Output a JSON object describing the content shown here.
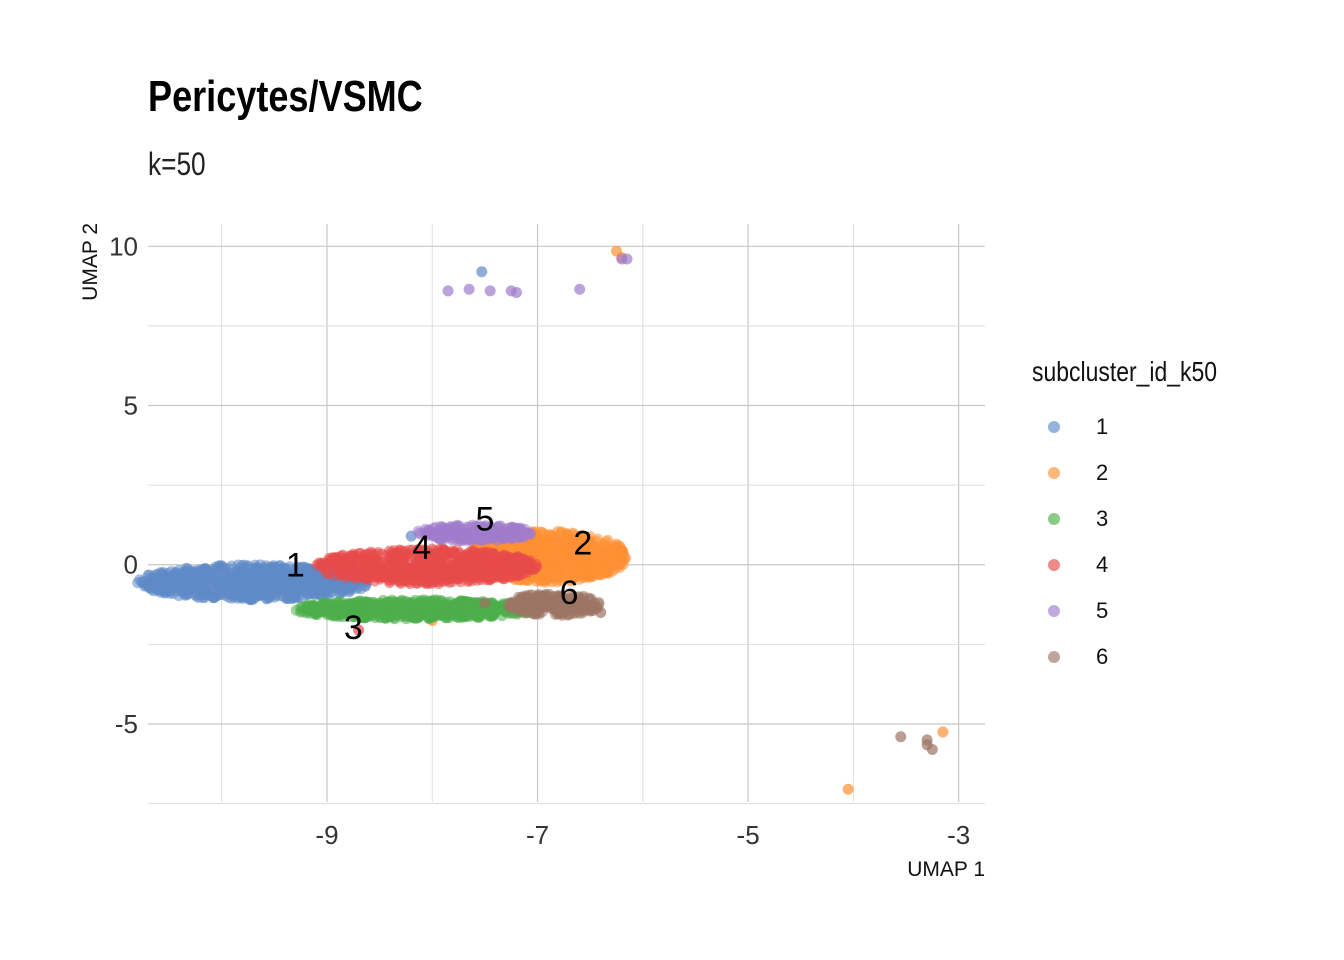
{
  "chart_data": {
    "type": "scatter",
    "title": "Pericytes/VSMC",
    "subtitle": "k=50",
    "xlabel": "UMAP 1",
    "ylabel": "UMAP 2",
    "xlim": [
      -10.7,
      -2.75
    ],
    "ylim": [
      -7.45,
      10.7
    ],
    "x_ticks": [
      -9,
      -7,
      -5,
      -3
    ],
    "y_ticks": [
      -5,
      0,
      5,
      10
    ],
    "x_tick_labels": [
      "-9",
      "-7",
      "-5",
      "-3"
    ],
    "y_tick_labels": [
      "-5",
      "0",
      "5",
      "10"
    ],
    "grid": true,
    "legend": {
      "title": "subcluster_id_k50",
      "position": "right"
    },
    "series": [
      {
        "name": "1",
        "color": "#5e8ac7",
        "label": "1",
        "label_pos": [
          -9.3,
          0
        ],
        "cloud": {
          "cx": -9.7,
          "cy": -0.55,
          "rx": 1.1,
          "ry": 0.55,
          "n": 700
        },
        "points": [
          [
            -7.53,
            9.2
          ],
          [
            -8.2,
            0.9
          ],
          [
            -7.7,
            0.95
          ],
          [
            -10.55,
            -0.8
          ]
        ]
      },
      {
        "name": "2",
        "color": "#ff9033",
        "label": "2",
        "label_pos": [
          -6.57,
          0.7
        ],
        "cloud": {
          "cx": -6.9,
          "cy": 0.25,
          "rx": 0.75,
          "ry": 0.8,
          "n": 700
        },
        "points": [
          [
            -6.25,
            9.85
          ],
          [
            -6.2,
            9.65
          ],
          [
            -3.15,
            -5.25
          ],
          [
            -4.05,
            -7.05
          ],
          [
            -8.0,
            -1.75
          ]
        ]
      },
      {
        "name": "3",
        "color": "#4daf4a",
        "label": "3",
        "label_pos": [
          -8.75,
          -1.95
        ],
        "cloud": {
          "cx": -8.15,
          "cy": -1.4,
          "rx": 1.15,
          "ry": 0.3,
          "n": 650
        },
        "points": []
      },
      {
        "name": "4",
        "color": "#e84a4a",
        "label": "4",
        "label_pos": [
          -8.1,
          0.55
        ],
        "cloud": {
          "cx": -8.05,
          "cy": -0.05,
          "rx": 1.05,
          "ry": 0.55,
          "n": 650
        },
        "points": [
          [
            -8.7,
            -2.05
          ]
        ]
      },
      {
        "name": "5",
        "color": "#a07ccc",
        "label": "5",
        "label_pos": [
          -7.5,
          1.45
        ],
        "cloud": {
          "cx": -7.6,
          "cy": 1.0,
          "rx": 0.55,
          "ry": 0.25,
          "n": 220
        },
        "points": [
          [
            -7.85,
            8.6
          ],
          [
            -7.65,
            8.65
          ],
          [
            -7.45,
            8.6
          ],
          [
            -7.25,
            8.6
          ],
          [
            -7.2,
            8.55
          ],
          [
            -6.6,
            8.65
          ],
          [
            -6.2,
            9.6
          ],
          [
            -6.15,
            9.6
          ]
        ]
      },
      {
        "name": "6",
        "color": "#9c7465",
        "label": "6",
        "label_pos": [
          -6.7,
          -0.85
        ],
        "cloud": {
          "cx": -6.85,
          "cy": -1.25,
          "rx": 0.45,
          "ry": 0.35,
          "n": 200
        },
        "points": [
          [
            -3.55,
            -5.4
          ],
          [
            -3.3,
            -5.5
          ],
          [
            -3.3,
            -5.65
          ],
          [
            -3.25,
            -5.8
          ],
          [
            -6.4,
            -1.5
          ],
          [
            -7.5,
            -1.2
          ]
        ]
      }
    ]
  }
}
